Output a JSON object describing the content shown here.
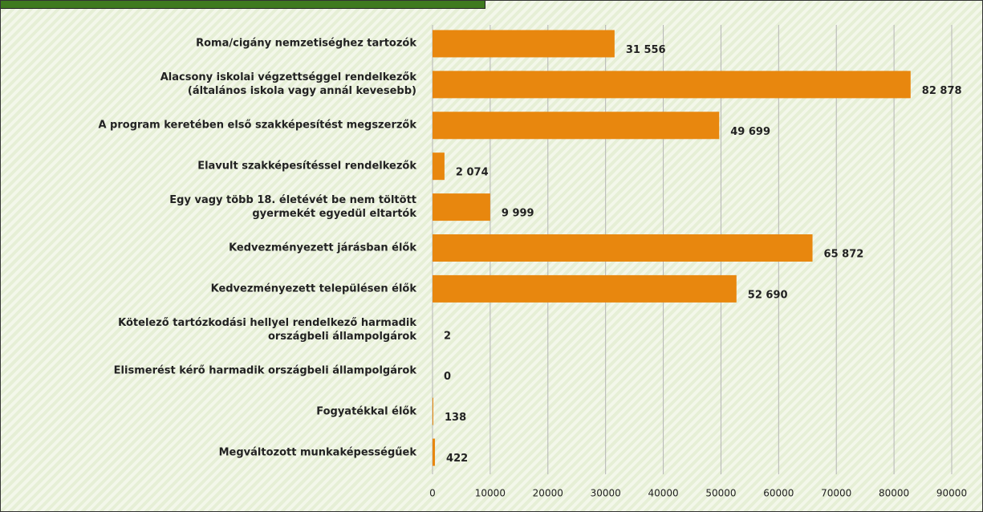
{
  "chart_data": {
    "type": "bar",
    "orientation": "horizontal",
    "categories": [
      "Roma/cigány nemzetiséghez tartozók",
      "Alacsony iskolai végzettséggel rendelkezők\n(általános iskola vagy annál kevesebb)",
      "A program keretében első szakképesítést megszerzők",
      "Elavult szakképesítéssel rendelkezők",
      "Egy vagy több 18. életévét be nem töltött\ngyermekét egyedül eltartók",
      "Kedvezményezett járásban élők",
      "Kedvezményezett településen élők",
      "Kötelező tartózkodási hellyel rendelkező harmadik\nországbeli állampolgárok",
      "Elismerést kérő harmadik országbeli állampolgárok",
      "Fogyatékkal élők",
      "Megváltozott munkaképességűek"
    ],
    "values": [
      31556,
      82878,
      49699,
      2074,
      9999,
      65872,
      52690,
      2,
      0,
      138,
      422
    ],
    "value_labels": [
      "31 556",
      "82 878",
      "49 699",
      "2 074",
      "9 999",
      "65 872",
      "52 690",
      "2",
      "0",
      "138",
      "422"
    ],
    "color": "#e8870e",
    "xlim": [
      0,
      90000
    ],
    "xticks": [
      0,
      10000,
      20000,
      30000,
      40000,
      50000,
      60000,
      70000,
      80000,
      90000
    ],
    "grid": true
  }
}
